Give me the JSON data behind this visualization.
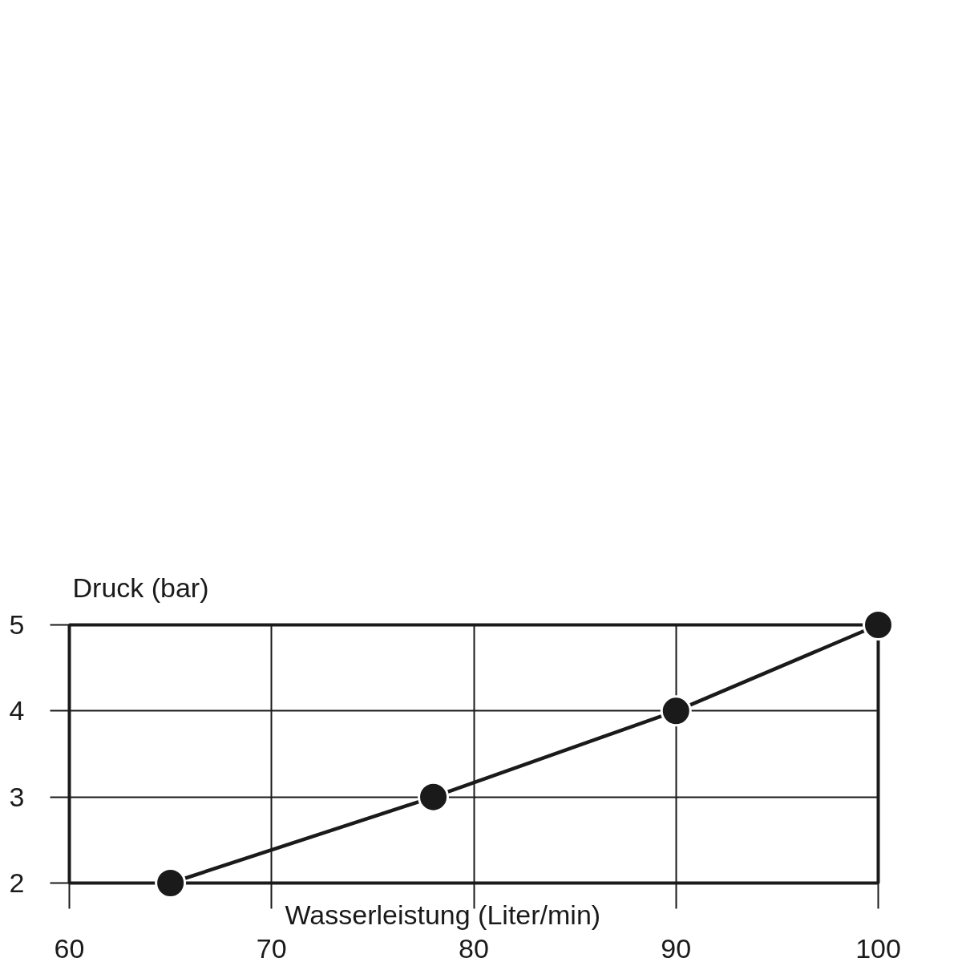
{
  "chart_data": {
    "type": "line",
    "xlabel": "Wasserleistung (Liter/min)",
    "ylabel": "Druck (bar)",
    "x": [
      65,
      78,
      90,
      100
    ],
    "series": [
      {
        "color": "#1a1a1a",
        "values": [
          2,
          3,
          4,
          5
        ]
      }
    ],
    "xlim": [
      60,
      100
    ],
    "ylim": [
      2,
      5
    ],
    "xticks": [
      60,
      70,
      80,
      90,
      100
    ],
    "yticks": [
      2,
      3,
      4,
      5
    ],
    "grid": true,
    "marker": "circle",
    "line_style": "solid"
  }
}
